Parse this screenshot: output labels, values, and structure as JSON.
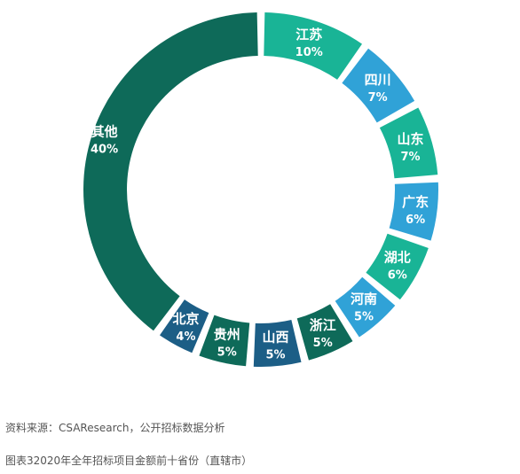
{
  "chart_data": {
    "type": "pie",
    "title": "",
    "categories": [
      "江苏",
      "四川",
      "山东",
      "广东",
      "湖北",
      "河南",
      "浙江",
      "山西",
      "贵州",
      "北京",
      "其他"
    ],
    "values": [
      10,
      7,
      7,
      6,
      6,
      5,
      5,
      5,
      5,
      4,
      40
    ],
    "value_labels": [
      "10%",
      "7%",
      "7%",
      "6%",
      "6%",
      "5%",
      "5%",
      "5%",
      "5%",
      "4%",
      "40%"
    ],
    "colors": [
      "#19b496",
      "#30a2d7",
      "#19b496",
      "#30a2d7",
      "#19b496",
      "#30a2d7",
      "#0e6a59",
      "#1c5e86",
      "#0e6a59",
      "#1c5e86",
      "#0e6a59"
    ],
    "legend": "none",
    "style": "donut"
  },
  "caption": {
    "source": "资料来源：CSAResearch，公开招标数据分析",
    "figure_title": "图表32020年全年招标项目金额前十省份（直辖市）"
  }
}
